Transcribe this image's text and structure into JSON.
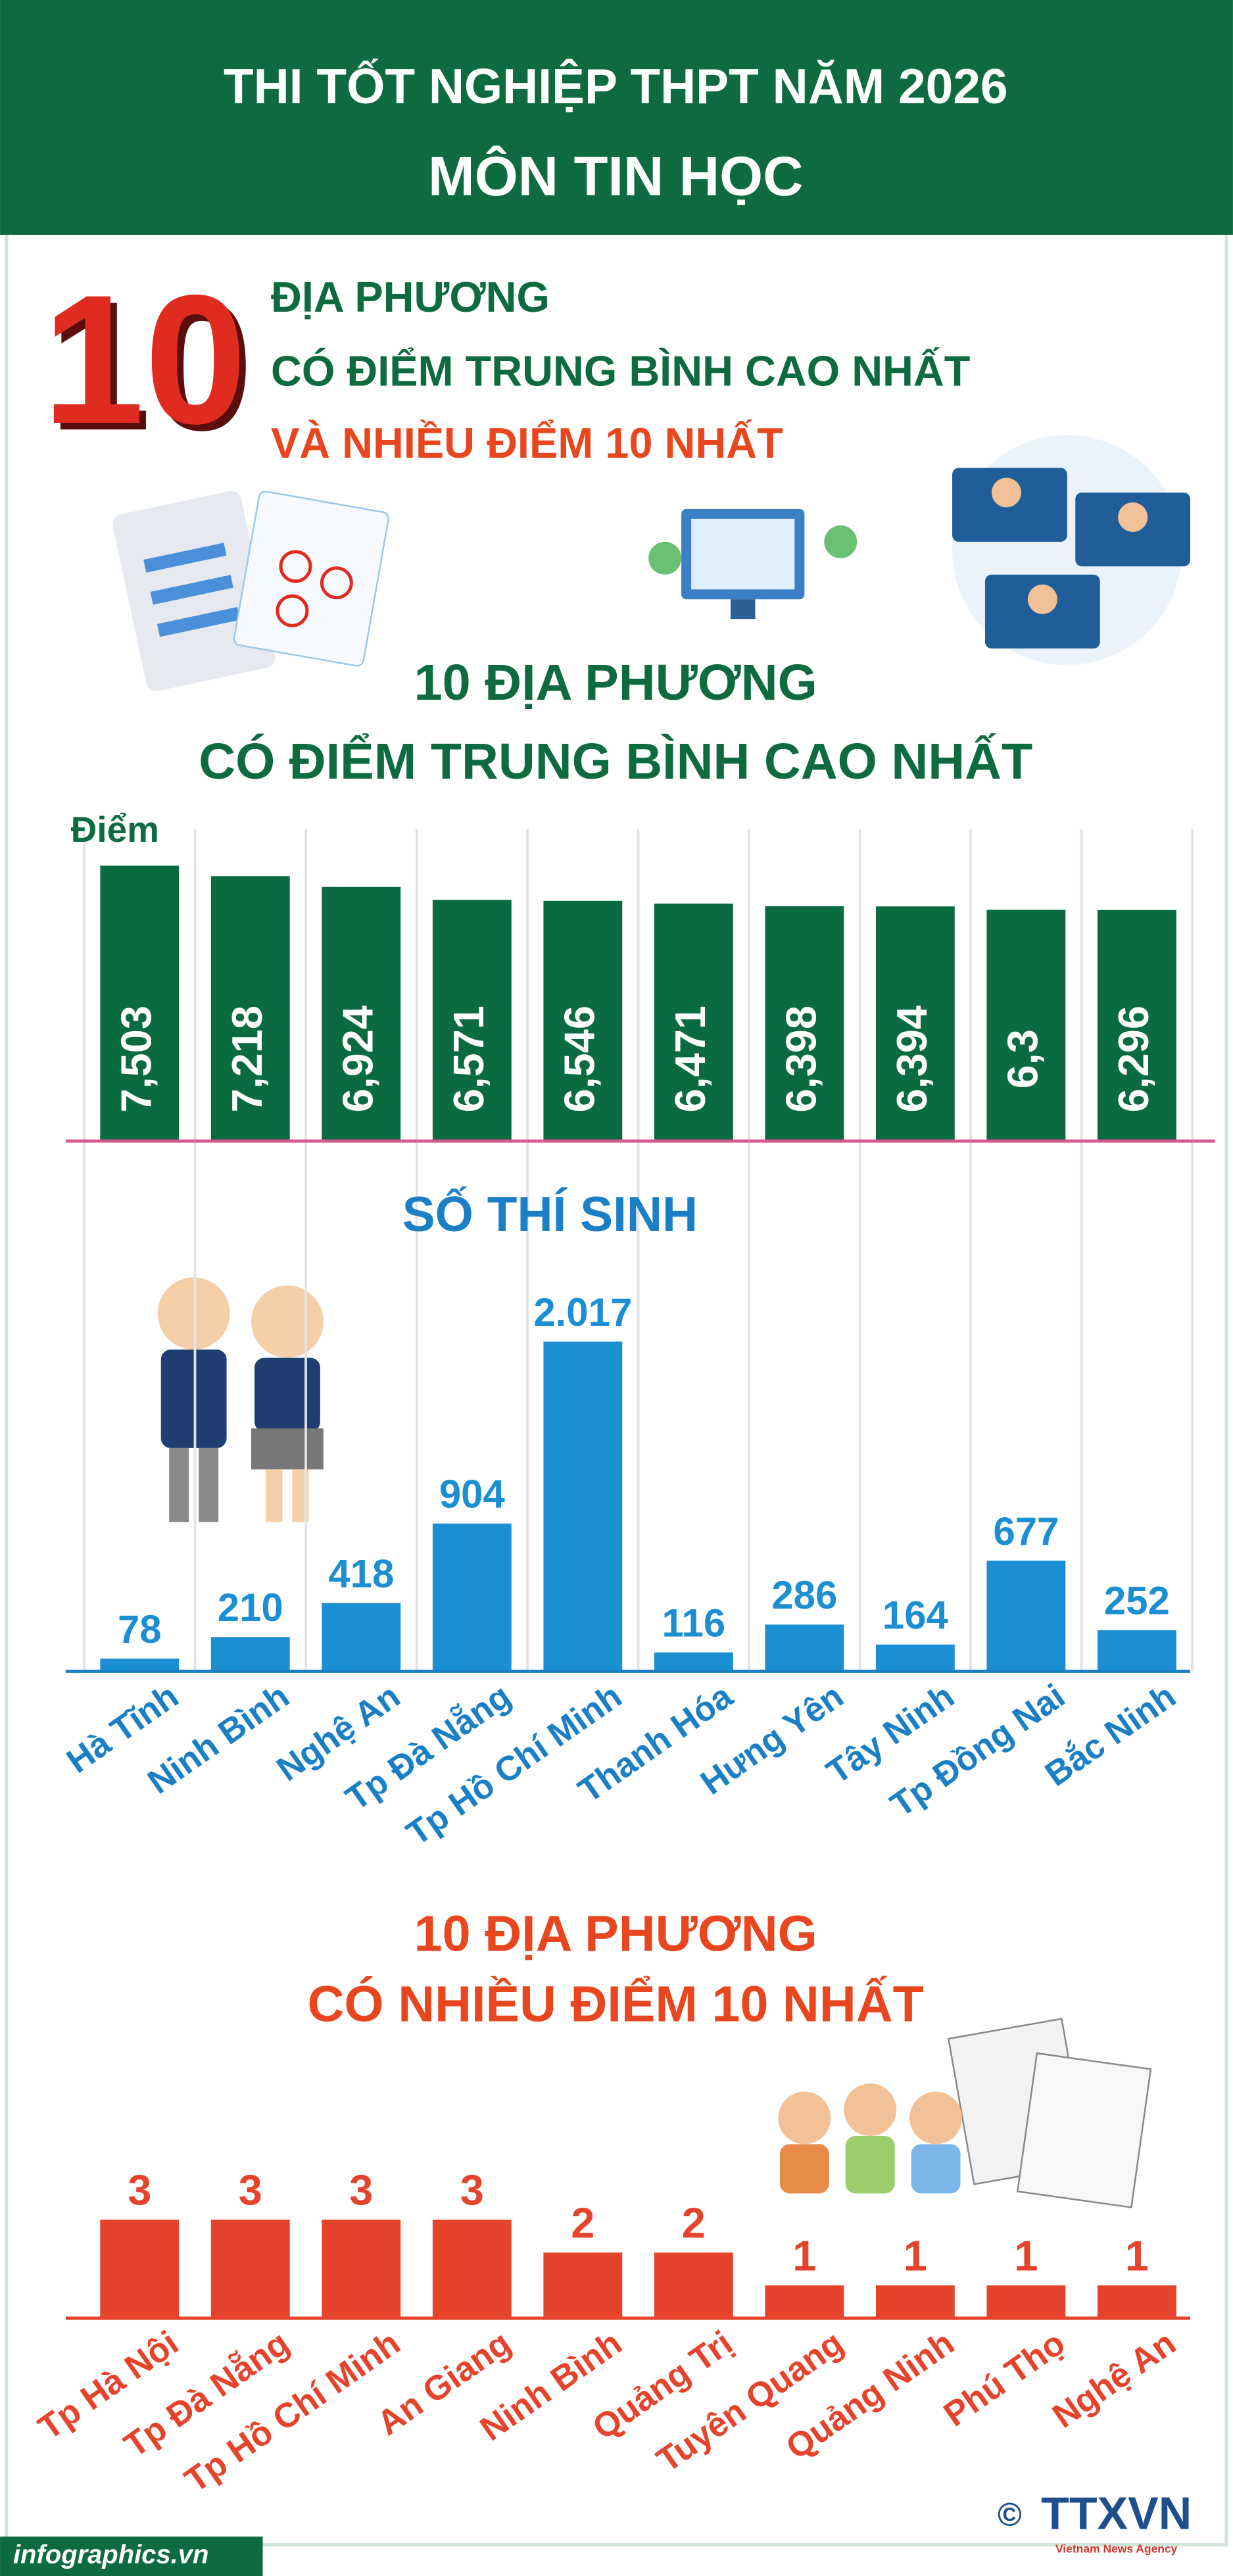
{
  "header": {
    "title": "THI TỐT NGHIỆP THPT NĂM 2026",
    "subtitle": "MÔN TIN HỌC"
  },
  "intro": {
    "number": "10",
    "lines": [
      "ĐỊA PHƯƠNG",
      "CÓ ĐIỂM TRUNG BÌNH CAO NHẤT",
      "VÀ NHIỀU ĐIỂM 10 NHẤT"
    ]
  },
  "chart_data": [
    {
      "type": "bar",
      "title_lines": [
        "10 ĐỊA PHƯƠNG",
        "CÓ ĐIỂM TRUNG BÌNH CAO NHẤT"
      ],
      "y_label": "Điểm",
      "values": [
        7.503,
        7.218,
        6.924,
        6.571,
        6.546,
        6.471,
        6.398,
        6.394,
        6.3,
        6.296
      ],
      "value_labels": [
        "7,503",
        "7,218",
        "6,924",
        "6,571",
        "6,546",
        "6,471",
        "6,398",
        "6,394",
        "6,3",
        "6,296"
      ],
      "color": "#0b6b40",
      "ylim": [
        0,
        8.5
      ]
    },
    {
      "type": "bar",
      "title": "SỐ THÍ SINH",
      "categories": [
        "Hà Tĩnh",
        "Ninh Bình",
        "Nghệ An",
        "Tp Đà Nẵng",
        "Tp Hồ Chí Minh",
        "Thanh Hóa",
        "Hưng Yên",
        "Tây Ninh",
        "Tp Đồng Nai",
        "Bắc Ninh"
      ],
      "values": [
        78,
        210,
        418,
        904,
        2017,
        116,
        286,
        164,
        677,
        252
      ],
      "value_labels": [
        "78",
        "210",
        "418",
        "904",
        "2.017",
        "116",
        "286",
        "164",
        "677",
        "252"
      ],
      "color": "#1b8fd2",
      "ylim": [
        0,
        2500
      ]
    },
    {
      "type": "bar",
      "title_lines": [
        "10 ĐỊA PHƯƠNG",
        "CÓ NHIỀU ĐIỂM 10 NHẤT"
      ],
      "categories": [
        "Tp Hà Nội",
        "Tp Đà Nẵng",
        "Tp Hồ Chí Minh",
        "An Giang",
        "Ninh Bình",
        "Quảng Trị",
        "Tuyên Quang",
        "Quảng Ninh",
        "Phú Thọ",
        "Nghệ An"
      ],
      "values": [
        3,
        3,
        3,
        3,
        2,
        2,
        1,
        1,
        1,
        1
      ],
      "color": "#e5432b",
      "ylim": [
        0,
        4
      ]
    }
  ],
  "footer": {
    "site": "infographics.vn",
    "copyright": "©",
    "agency": "TTXVN",
    "agency_en": "Vietnam News Agency"
  }
}
